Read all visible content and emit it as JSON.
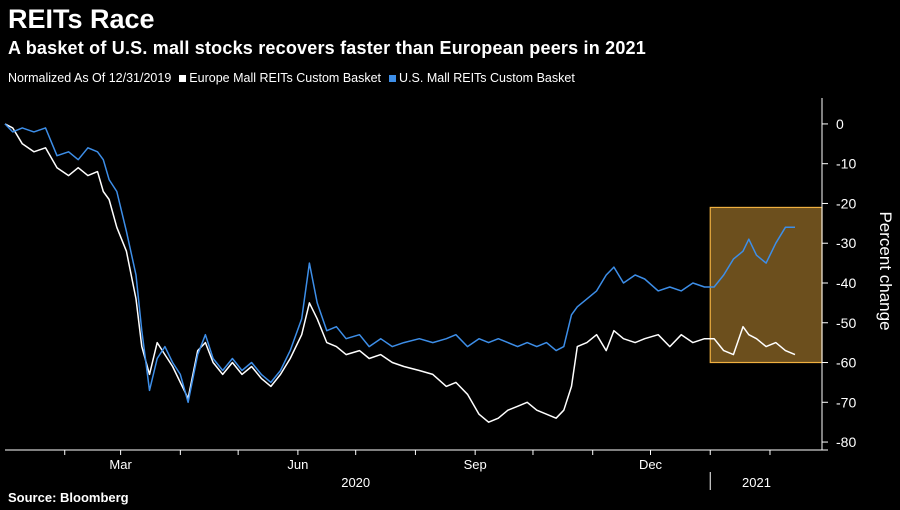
{
  "header": {
    "title": "REITs Race",
    "subtitle": "A basket of U.S. mall stocks recovers faster than European peers in 2021"
  },
  "legend": {
    "note": "Normalized As Of 12/31/2019",
    "items": [
      {
        "label": "Europe Mall REITs Custom Basket",
        "color": "#ffffff"
      },
      {
        "label": "U.S. Mall REITs Custom Basket",
        "color": "#3d8ee8"
      }
    ]
  },
  "source": "Source: Bloomberg",
  "chart_data": {
    "type": "line",
    "ylabel": "Percent change",
    "ylim": [
      -82,
      3
    ],
    "yticks": [
      0,
      -10,
      -20,
      -30,
      -40,
      -50,
      -60,
      -70,
      -80
    ],
    "ytick_labels": [
      "0",
      "-10",
      "-20",
      "-30",
      "-40",
      "-50",
      "-60",
      "-70",
      "-80"
    ],
    "xlim": [
      "2020-01-01",
      "2021-02-28"
    ],
    "x_month_ticks": [
      {
        "date": "2020-02-01"
      },
      {
        "date": "2020-03-01",
        "label": "Mar"
      },
      {
        "date": "2020-04-01"
      },
      {
        "date": "2020-05-01"
      },
      {
        "date": "2020-06-01",
        "label": "Jun"
      },
      {
        "date": "2020-07-01"
      },
      {
        "date": "2020-08-01"
      },
      {
        "date": "2020-09-01",
        "label": "Sep"
      },
      {
        "date": "2020-10-01"
      },
      {
        "date": "2020-11-01"
      },
      {
        "date": "2020-12-01",
        "label": "Dec"
      },
      {
        "date": "2021-01-01"
      },
      {
        "date": "2021-02-01"
      }
    ],
    "x_year_labels": [
      {
        "date": "2020-07-01",
        "label": "2020"
      },
      {
        "date": "2021-01-25",
        "label": "2021"
      }
    ],
    "year_separator": "2021-01-01",
    "highlight": {
      "x_start": "2021-01-01",
      "x_end": "2021-02-28",
      "y_top": -21,
      "y_bottom": -60,
      "color": "#f0b040"
    },
    "grid": false,
    "series": [
      {
        "name": "Europe Mall REITs Custom Basket",
        "color": "#ffffff",
        "points": [
          [
            "2020-01-01",
            0
          ],
          [
            "2020-01-05",
            -1
          ],
          [
            "2020-01-10",
            -5
          ],
          [
            "2020-01-16",
            -7
          ],
          [
            "2020-01-22",
            -6
          ],
          [
            "2020-01-28",
            -11
          ],
          [
            "2020-02-03",
            -13
          ],
          [
            "2020-02-08",
            -11
          ],
          [
            "2020-02-13",
            -13
          ],
          [
            "2020-02-18",
            -12
          ],
          [
            "2020-02-21",
            -17
          ],
          [
            "2020-02-24",
            -19
          ],
          [
            "2020-02-28",
            -26
          ],
          [
            "2020-03-04",
            -32
          ],
          [
            "2020-03-09",
            -44
          ],
          [
            "2020-03-12",
            -56
          ],
          [
            "2020-03-16",
            -63
          ],
          [
            "2020-03-20",
            -55
          ],
          [
            "2020-03-24",
            -58
          ],
          [
            "2020-03-28",
            -61
          ],
          [
            "2020-04-01",
            -65
          ],
          [
            "2020-04-05",
            -69
          ],
          [
            "2020-04-10",
            -57
          ],
          [
            "2020-04-14",
            -55
          ],
          [
            "2020-04-18",
            -60
          ],
          [
            "2020-04-23",
            -63
          ],
          [
            "2020-04-28",
            -60
          ],
          [
            "2020-05-03",
            -63
          ],
          [
            "2020-05-08",
            -61
          ],
          [
            "2020-05-13",
            -64
          ],
          [
            "2020-05-18",
            -66
          ],
          [
            "2020-05-23",
            -63
          ],
          [
            "2020-05-28",
            -59
          ],
          [
            "2020-06-03",
            -53
          ],
          [
            "2020-06-07",
            -45
          ],
          [
            "2020-06-11",
            -49
          ],
          [
            "2020-06-16",
            -55
          ],
          [
            "2020-06-21",
            -56
          ],
          [
            "2020-06-26",
            -58
          ],
          [
            "2020-07-03",
            -57
          ],
          [
            "2020-07-08",
            -59
          ],
          [
            "2020-07-14",
            -58
          ],
          [
            "2020-07-20",
            -60
          ],
          [
            "2020-07-26",
            -61
          ],
          [
            "2020-08-03",
            -62
          ],
          [
            "2020-08-10",
            -63
          ],
          [
            "2020-08-17",
            -66
          ],
          [
            "2020-08-22",
            -65
          ],
          [
            "2020-08-28",
            -68
          ],
          [
            "2020-09-03",
            -73
          ],
          [
            "2020-09-08",
            -75
          ],
          [
            "2020-09-13",
            -74
          ],
          [
            "2020-09-18",
            -72
          ],
          [
            "2020-09-23",
            -71
          ],
          [
            "2020-09-28",
            -70
          ],
          [
            "2020-10-03",
            -72
          ],
          [
            "2020-10-08",
            -73
          ],
          [
            "2020-10-13",
            -74
          ],
          [
            "2020-10-17",
            -72
          ],
          [
            "2020-10-21",
            -66
          ],
          [
            "2020-10-24",
            -56
          ],
          [
            "2020-10-29",
            -55
          ],
          [
            "2020-11-03",
            -53
          ],
          [
            "2020-11-08",
            -57
          ],
          [
            "2020-11-12",
            -52
          ],
          [
            "2020-11-17",
            -54
          ],
          [
            "2020-11-23",
            -55
          ],
          [
            "2020-11-28",
            -54
          ],
          [
            "2020-12-05",
            -53
          ],
          [
            "2020-12-11",
            -56
          ],
          [
            "2020-12-17",
            -53
          ],
          [
            "2020-12-23",
            -55
          ],
          [
            "2020-12-29",
            -54
          ],
          [
            "2021-01-03",
            -54
          ],
          [
            "2021-01-08",
            -57
          ],
          [
            "2021-01-13",
            -58
          ],
          [
            "2021-01-18",
            -51
          ],
          [
            "2021-01-21",
            -53
          ],
          [
            "2021-01-25",
            -54
          ],
          [
            "2021-01-30",
            -56
          ],
          [
            "2021-02-04",
            -55
          ],
          [
            "2021-02-09",
            -57
          ],
          [
            "2021-02-14",
            -58
          ]
        ]
      },
      {
        "name": "U.S. Mall REITs Custom Basket",
        "color": "#3d8ee8",
        "points": [
          [
            "2020-01-01",
            0
          ],
          [
            "2020-01-05",
            -2
          ],
          [
            "2020-01-10",
            -1
          ],
          [
            "2020-01-16",
            -2
          ],
          [
            "2020-01-22",
            -1
          ],
          [
            "2020-01-28",
            -8
          ],
          [
            "2020-02-03",
            -7
          ],
          [
            "2020-02-08",
            -9
          ],
          [
            "2020-02-13",
            -6
          ],
          [
            "2020-02-18",
            -7
          ],
          [
            "2020-02-21",
            -9
          ],
          [
            "2020-02-24",
            -14
          ],
          [
            "2020-02-28",
            -17
          ],
          [
            "2020-03-04",
            -27
          ],
          [
            "2020-03-09",
            -38
          ],
          [
            "2020-03-12",
            -52
          ],
          [
            "2020-03-16",
            -67
          ],
          [
            "2020-03-20",
            -59
          ],
          [
            "2020-03-24",
            -56
          ],
          [
            "2020-03-28",
            -60
          ],
          [
            "2020-04-01",
            -63
          ],
          [
            "2020-04-05",
            -70
          ],
          [
            "2020-04-10",
            -58
          ],
          [
            "2020-04-14",
            -53
          ],
          [
            "2020-04-18",
            -59
          ],
          [
            "2020-04-23",
            -62
          ],
          [
            "2020-04-28",
            -59
          ],
          [
            "2020-05-03",
            -62
          ],
          [
            "2020-05-08",
            -60
          ],
          [
            "2020-05-13",
            -63
          ],
          [
            "2020-05-18",
            -65
          ],
          [
            "2020-05-23",
            -62
          ],
          [
            "2020-05-28",
            -57
          ],
          [
            "2020-06-03",
            -49
          ],
          [
            "2020-06-07",
            -35
          ],
          [
            "2020-06-11",
            -45
          ],
          [
            "2020-06-16",
            -52
          ],
          [
            "2020-06-21",
            -51
          ],
          [
            "2020-06-26",
            -54
          ],
          [
            "2020-07-03",
            -53
          ],
          [
            "2020-07-08",
            -56
          ],
          [
            "2020-07-14",
            -54
          ],
          [
            "2020-07-20",
            -56
          ],
          [
            "2020-07-26",
            -55
          ],
          [
            "2020-08-03",
            -54
          ],
          [
            "2020-08-10",
            -55
          ],
          [
            "2020-08-17",
            -54
          ],
          [
            "2020-08-22",
            -53
          ],
          [
            "2020-08-28",
            -56
          ],
          [
            "2020-09-03",
            -54
          ],
          [
            "2020-09-08",
            -55
          ],
          [
            "2020-09-13",
            -54
          ],
          [
            "2020-09-18",
            -55
          ],
          [
            "2020-09-23",
            -56
          ],
          [
            "2020-09-28",
            -55
          ],
          [
            "2020-10-03",
            -56
          ],
          [
            "2020-10-08",
            -55
          ],
          [
            "2020-10-13",
            -57
          ],
          [
            "2020-10-17",
            -56
          ],
          [
            "2020-10-21",
            -48
          ],
          [
            "2020-10-24",
            -46
          ],
          [
            "2020-10-29",
            -44
          ],
          [
            "2020-11-03",
            -42
          ],
          [
            "2020-11-08",
            -38
          ],
          [
            "2020-11-12",
            -36
          ],
          [
            "2020-11-17",
            -40
          ],
          [
            "2020-11-23",
            -38
          ],
          [
            "2020-11-28",
            -39
          ],
          [
            "2020-12-05",
            -42
          ],
          [
            "2020-12-11",
            -41
          ],
          [
            "2020-12-17",
            -42
          ],
          [
            "2020-12-23",
            -40
          ],
          [
            "2020-12-29",
            -41
          ],
          [
            "2021-01-03",
            -41
          ],
          [
            "2021-01-08",
            -38
          ],
          [
            "2021-01-13",
            -34
          ],
          [
            "2021-01-18",
            -32
          ],
          [
            "2021-01-21",
            -29
          ],
          [
            "2021-01-25",
            -33
          ],
          [
            "2021-01-30",
            -35
          ],
          [
            "2021-02-04",
            -30
          ],
          [
            "2021-02-09",
            -26
          ],
          [
            "2021-02-14",
            -26
          ]
        ]
      }
    ]
  }
}
